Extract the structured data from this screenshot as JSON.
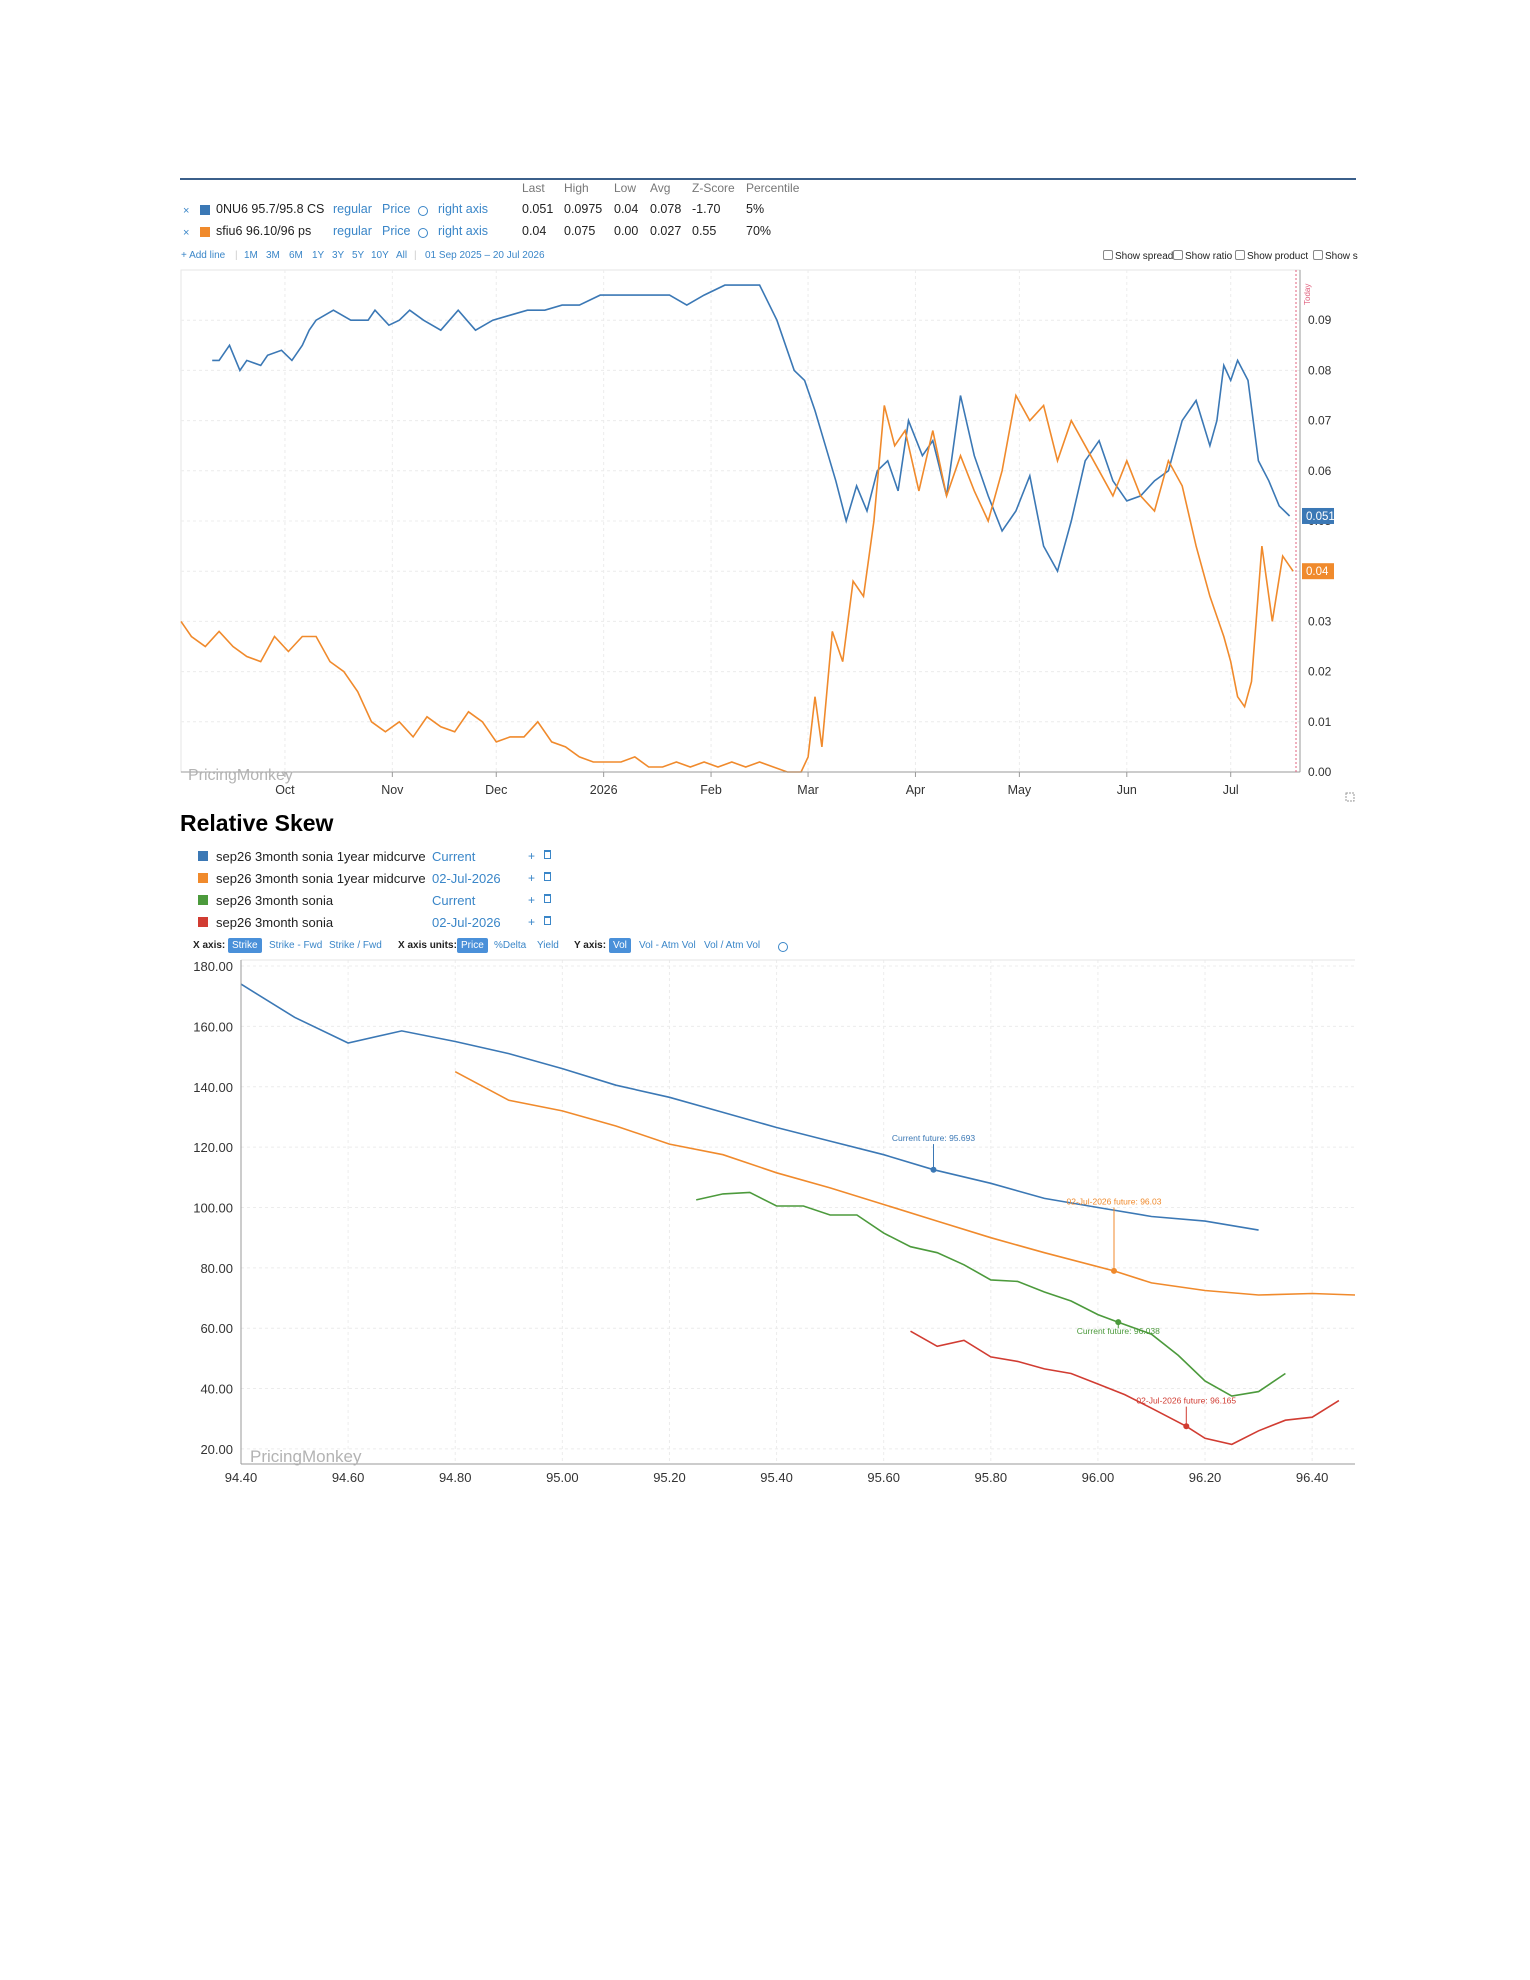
{
  "panel1": {
    "headers": [
      "Last",
      "High",
      "Low",
      "Avg",
      "Z-Score",
      "Percentile"
    ],
    "series": [
      {
        "close": "×",
        "name": "0NU6 95.7/95.8 CS",
        "mode": "regular",
        "field": "Price",
        "axis": "right axis",
        "stats": [
          "0.051",
          "0.0975",
          "0.04",
          "0.078",
          "-1.70",
          "5%"
        ],
        "color": "#3b78b5"
      },
      {
        "close": "×",
        "name": "sfiu6 96.10/96 ps",
        "mode": "regular",
        "field": "Price",
        "axis": "right axis",
        "stats": [
          "0.04",
          "0.075",
          "0.00",
          "0.027",
          "0.55",
          "70%"
        ],
        "color": "#f08a2c"
      }
    ],
    "toolbar": {
      "add_line": "+ Add line",
      "ranges": [
        "1M",
        "3M",
        "6M",
        "1Y",
        "3Y",
        "5Y",
        "10Y",
        "All"
      ],
      "date_range": "01 Sep 2025 – 20 Jul 2026",
      "toggles": [
        "Show spread",
        "Show ratio",
        "Show product",
        "Show s"
      ]
    },
    "today_label": "Today",
    "watermark": "PricingMonkey"
  },
  "panel2": {
    "title": "Relative Skew",
    "legend": [
      {
        "name": "sep26 3month sonia 1year midcurve",
        "date": "Current",
        "color": "#3b78b5"
      },
      {
        "name": "sep26 3month sonia 1year midcurve",
        "date": "02-Jul-2026",
        "color": "#f08a2c"
      },
      {
        "name": "sep26 3month sonia",
        "date": "Current",
        "color": "#4c9a3c"
      },
      {
        "name": "sep26 3month sonia",
        "date": "02-Jul-2026",
        "color": "#d13c32"
      }
    ],
    "legend_plus": "+",
    "controls": {
      "x_axis_label": "X axis:",
      "x_axis_options": [
        "Strike",
        "Strike - Fwd",
        "Strike / Fwd"
      ],
      "x_units_label": "X axis units:",
      "x_units_options": [
        "Price",
        "%Delta",
        "Yield"
      ],
      "y_axis_label": "Y axis:",
      "y_axis_options": [
        "Vol",
        "Vol - Atm Vol",
        "Vol / Atm Vol"
      ]
    },
    "watermark": "PricingMonkey"
  },
  "chart_data": [
    {
      "type": "line",
      "x_labels": [
        "Oct",
        "Nov",
        "Dec",
        "2026",
        "Feb",
        "Mar",
        "Apr",
        "May",
        "Jun",
        "Jul"
      ],
      "ylim": [
        0,
        0.1
      ],
      "y_ticks": [
        "0.00",
        "0.01",
        "0.02",
        "0.03",
        "0.04",
        "0.05",
        "0.06",
        "0.07",
        "0.08",
        "0.09"
      ],
      "y_axis_side": "right",
      "last_value_labels": [
        "0.051",
        "0.04"
      ],
      "series": [
        {
          "name": "0NU6 95.7/95.8 CS",
          "color": "#3b78b5",
          "x": [
            "2025-09-10",
            "2025-09-12",
            "2025-09-15",
            "2025-09-18",
            "2025-09-20",
            "2025-09-24",
            "2025-09-26",
            "2025-09-30",
            "2025-10-03",
            "2025-10-06",
            "2025-10-08",
            "2025-10-10",
            "2025-10-15",
            "2025-10-20",
            "2025-10-25",
            "2025-10-27",
            "2025-10-31",
            "2025-11-03",
            "2025-11-06",
            "2025-11-10",
            "2025-11-15",
            "2025-11-20",
            "2025-11-25",
            "2025-11-30",
            "2025-12-05",
            "2025-12-10",
            "2025-12-15",
            "2025-12-20",
            "2025-12-25",
            "2025-12-31",
            "2026-01-05",
            "2026-01-10",
            "2026-01-15",
            "2026-01-20",
            "2026-01-25",
            "2026-01-30",
            "2026-02-05",
            "2026-02-10",
            "2026-02-15",
            "2026-02-20",
            "2026-02-25",
            "2026-02-28",
            "2026-03-03",
            "2026-03-06",
            "2026-03-09",
            "2026-03-12",
            "2026-03-15",
            "2026-03-18",
            "2026-03-21",
            "2026-03-24",
            "2026-03-27",
            "2026-03-30",
            "2026-04-03",
            "2026-04-06",
            "2026-04-10",
            "2026-04-14",
            "2026-04-18",
            "2026-04-22",
            "2026-04-26",
            "2026-04-30",
            "2026-05-04",
            "2026-05-08",
            "2026-05-12",
            "2026-05-16",
            "2026-05-20",
            "2026-05-24",
            "2026-05-28",
            "2026-06-01",
            "2026-06-05",
            "2026-06-09",
            "2026-06-13",
            "2026-06-17",
            "2026-06-21",
            "2026-06-25",
            "2026-06-27",
            "2026-06-29",
            "2026-07-01",
            "2026-07-03",
            "2026-07-06",
            "2026-07-09",
            "2026-07-12",
            "2026-07-15",
            "2026-07-18"
          ],
          "y": [
            0.082,
            0.082,
            0.085,
            0.08,
            0.082,
            0.081,
            0.083,
            0.084,
            0.082,
            0.085,
            0.088,
            0.09,
            0.092,
            0.09,
            0.09,
            0.092,
            0.089,
            0.09,
            0.092,
            0.09,
            0.088,
            0.092,
            0.088,
            0.09,
            0.091,
            0.092,
            0.092,
            0.093,
            0.093,
            0.095,
            0.095,
            0.095,
            0.095,
            0.095,
            0.093,
            0.095,
            0.097,
            0.097,
            0.097,
            0.09,
            0.08,
            0.078,
            0.072,
            0.065,
            0.058,
            0.05,
            0.057,
            0.052,
            0.06,
            0.062,
            0.056,
            0.07,
            0.063,
            0.066,
            0.055,
            0.075,
            0.063,
            0.055,
            0.048,
            0.052,
            0.059,
            0.045,
            0.04,
            0.05,
            0.062,
            0.066,
            0.058,
            0.054,
            0.055,
            0.058,
            0.06,
            0.07,
            0.074,
            0.065,
            0.07,
            0.081,
            0.078,
            0.082,
            0.078,
            0.062,
            0.058,
            0.053,
            0.051
          ]
        },
        {
          "name": "sfiu6 96.10/96 ps",
          "color": "#f08a2c",
          "x": [
            "2025-09-01",
            "2025-09-04",
            "2025-09-08",
            "2025-09-12",
            "2025-09-16",
            "2025-09-20",
            "2025-09-24",
            "2025-09-28",
            "2025-10-02",
            "2025-10-06",
            "2025-10-10",
            "2025-10-14",
            "2025-10-18",
            "2025-10-22",
            "2025-10-26",
            "2025-10-30",
            "2025-11-03",
            "2025-11-07",
            "2025-11-11",
            "2025-11-15",
            "2025-11-19",
            "2025-11-23",
            "2025-11-27",
            "2025-12-01",
            "2025-12-05",
            "2025-12-09",
            "2025-12-13",
            "2025-12-17",
            "2025-12-21",
            "2025-12-25",
            "2025-12-29",
            "2026-01-02",
            "2026-01-06",
            "2026-01-10",
            "2026-01-14",
            "2026-01-18",
            "2026-01-22",
            "2026-01-26",
            "2026-01-30",
            "2026-02-03",
            "2026-02-07",
            "2026-02-11",
            "2026-02-15",
            "2026-02-19",
            "2026-02-23",
            "2026-02-27",
            "2026-03-01",
            "2026-03-03",
            "2026-03-05",
            "2026-03-08",
            "2026-03-11",
            "2026-03-14",
            "2026-03-17",
            "2026-03-20",
            "2026-03-23",
            "2026-03-26",
            "2026-03-29",
            "2026-04-02",
            "2026-04-06",
            "2026-04-10",
            "2026-04-14",
            "2026-04-18",
            "2026-04-22",
            "2026-04-26",
            "2026-04-30",
            "2026-05-04",
            "2026-05-08",
            "2026-05-12",
            "2026-05-16",
            "2026-05-20",
            "2026-05-24",
            "2026-05-28",
            "2026-06-01",
            "2026-06-05",
            "2026-06-09",
            "2026-06-13",
            "2026-06-17",
            "2026-06-21",
            "2026-06-25",
            "2026-06-29",
            "2026-07-01",
            "2026-07-03",
            "2026-07-05",
            "2026-07-07",
            "2026-07-10",
            "2026-07-13",
            "2026-07-16",
            "2026-07-19"
          ],
          "y": [
            0.03,
            0.027,
            0.025,
            0.028,
            0.025,
            0.023,
            0.022,
            0.027,
            0.024,
            0.027,
            0.027,
            0.022,
            0.02,
            0.016,
            0.01,
            0.008,
            0.01,
            0.007,
            0.011,
            0.009,
            0.008,
            0.012,
            0.01,
            0.006,
            0.007,
            0.007,
            0.01,
            0.006,
            0.005,
            0.003,
            0.002,
            0.002,
            0.002,
            0.003,
            0.001,
            0.001,
            0.002,
            0.001,
            0.002,
            0.001,
            0.002,
            0.001,
            0.002,
            0.001,
            0.0,
            0.0,
            0.003,
            0.015,
            0.005,
            0.028,
            0.022,
            0.038,
            0.035,
            0.05,
            0.073,
            0.065,
            0.068,
            0.056,
            0.068,
            0.055,
            0.063,
            0.056,
            0.05,
            0.06,
            0.075,
            0.07,
            0.073,
            0.062,
            0.07,
            0.065,
            0.06,
            0.055,
            0.062,
            0.055,
            0.052,
            0.062,
            0.057,
            0.045,
            0.035,
            0.027,
            0.022,
            0.015,
            0.013,
            0.018,
            0.045,
            0.03,
            0.043,
            0.04
          ]
        }
      ]
    },
    {
      "type": "line",
      "xlim": [
        94.4,
        96.48
      ],
      "ylim": [
        15,
        182
      ],
      "x_ticks": [
        "94.40",
        "94.60",
        "94.80",
        "95.00",
        "95.20",
        "95.40",
        "95.60",
        "95.80",
        "96.00",
        "96.20",
        "96.40"
      ],
      "y_ticks": [
        "20.00",
        "40.00",
        "60.00",
        "80.00",
        "100.00",
        "120.00",
        "140.00",
        "160.00",
        "180.00"
      ],
      "series": [
        {
          "name": "sep26 3month sonia 1year midcurve — Current",
          "color": "#3b78b5",
          "x": [
            94.4,
            94.5,
            94.6,
            94.7,
            94.8,
            94.9,
            95.0,
            95.1,
            95.2,
            95.3,
            95.4,
            95.5,
            95.6,
            95.693,
            95.8,
            95.9,
            96.0,
            96.1,
            96.2,
            96.3
          ],
          "y": [
            174,
            163,
            154.5,
            158.5,
            155,
            151,
            146,
            140.5,
            136.5,
            131.5,
            126.5,
            122,
            117.5,
            112.5,
            108,
            103,
            100,
            97,
            95.5,
            92.5
          ],
          "marker": {
            "x": 95.693,
            "y": 112.5,
            "label": "Current future: 95.693"
          }
        },
        {
          "name": "sep26 3month sonia 1year midcurve — 02-Jul-2026",
          "color": "#f08a2c",
          "x": [
            94.8,
            94.9,
            95.0,
            95.1,
            95.2,
            95.3,
            95.4,
            95.5,
            95.6,
            95.7,
            95.8,
            95.9,
            96.03,
            96.1,
            96.2,
            96.3,
            96.4,
            96.48
          ],
          "y": [
            145,
            135.5,
            132,
            127,
            121,
            117.5,
            111.5,
            106.5,
            101,
            95.5,
            90,
            85,
            79,
            75,
            72.5,
            71,
            71.5,
            71
          ]
        },
        {
          "name": "sep26 3month sonia — Current",
          "color": "#4c9a3c",
          "x": [
            95.25,
            95.3,
            95.35,
            95.4,
            95.45,
            95.5,
            95.55,
            95.6,
            95.65,
            95.7,
            95.75,
            95.8,
            95.85,
            95.9,
            95.95,
            96.0,
            96.038,
            96.1,
            96.15,
            96.2,
            96.25,
            96.3,
            96.35
          ],
          "y": [
            102.5,
            104.5,
            105,
            100.5,
            100.5,
            97.5,
            97.5,
            91.5,
            87,
            85,
            81,
            76,
            75.5,
            72,
            69,
            64.5,
            62,
            58,
            51,
            42.5,
            37.5,
            39,
            45
          ]
        },
        {
          "name": "sep26 3month sonia — 02-Jul-2026",
          "color": "#d13c32",
          "x": [
            95.65,
            95.7,
            95.75,
            95.8,
            95.85,
            95.9,
            95.95,
            96.0,
            96.05,
            96.1,
            96.165,
            96.2,
            96.25,
            96.3,
            96.35,
            96.4,
            96.45
          ],
          "y": [
            59,
            54,
            56,
            50.5,
            49,
            46.5,
            45,
            41.5,
            38,
            33.5,
            27.5,
            23.5,
            21.5,
            26,
            29.5,
            30.5,
            36
          ]
        }
      ],
      "annotations": [
        "Current future: 95.693",
        "02-Jul-2026 future: 96.03",
        "Current future: 96.038",
        "02-Jul-2026 future: 96.165"
      ]
    }
  ]
}
